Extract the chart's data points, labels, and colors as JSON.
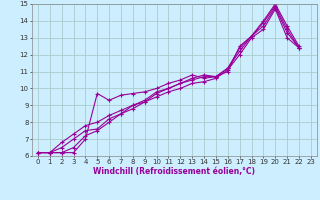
{
  "xlabel": "Windchill (Refroidissement éolien,°C)",
  "background_color": "#cceeff",
  "grid_color": "#aacccc",
  "line_color": "#990099",
  "xlim": [
    -0.5,
    23.5
  ],
  "ylim": [
    6,
    15
  ],
  "xticks": [
    0,
    1,
    2,
    3,
    4,
    5,
    6,
    7,
    8,
    9,
    10,
    11,
    12,
    13,
    14,
    15,
    16,
    17,
    18,
    19,
    20,
    21,
    22,
    23
  ],
  "yticks": [
    6,
    7,
    8,
    9,
    10,
    11,
    12,
    13,
    14,
    15
  ],
  "lines": [
    [
      6.2,
      6.2,
      6.2,
      6.2,
      7.0,
      9.7,
      9.3,
      9.6,
      9.7,
      9.8,
      10.0,
      10.3,
      10.5,
      10.8,
      10.6,
      10.7,
      11.0,
      12.5,
      13.1,
      14.0,
      15.0,
      13.7,
      12.5
    ],
    [
      6.2,
      6.2,
      6.2,
      6.5,
      7.2,
      7.5,
      8.0,
      8.5,
      9.0,
      9.3,
      9.8,
      10.0,
      10.3,
      10.6,
      10.8,
      10.7,
      11.2,
      12.4,
      13.1,
      13.9,
      14.9,
      13.5,
      12.4
    ],
    [
      6.2,
      6.2,
      6.5,
      7.0,
      7.5,
      7.6,
      8.2,
      8.5,
      8.8,
      9.2,
      9.7,
      10.0,
      10.3,
      10.5,
      10.7,
      10.7,
      11.2,
      12.2,
      13.1,
      13.7,
      14.8,
      13.3,
      12.4
    ],
    [
      6.2,
      6.2,
      6.8,
      7.3,
      7.8,
      8.0,
      8.4,
      8.7,
      9.0,
      9.2,
      9.5,
      9.8,
      10.0,
      10.3,
      10.4,
      10.6,
      11.1,
      12.0,
      13.0,
      13.5,
      14.7,
      13.0,
      12.4
    ]
  ],
  "x_values": [
    0,
    1,
    2,
    3,
    4,
    5,
    6,
    7,
    8,
    9,
    10,
    11,
    12,
    13,
    14,
    15,
    16,
    17,
    18,
    19,
    20,
    21,
    22
  ],
  "tick_fontsize": 5,
  "xlabel_fontsize": 5.5,
  "marker_size": 2.5,
  "line_width": 0.8
}
